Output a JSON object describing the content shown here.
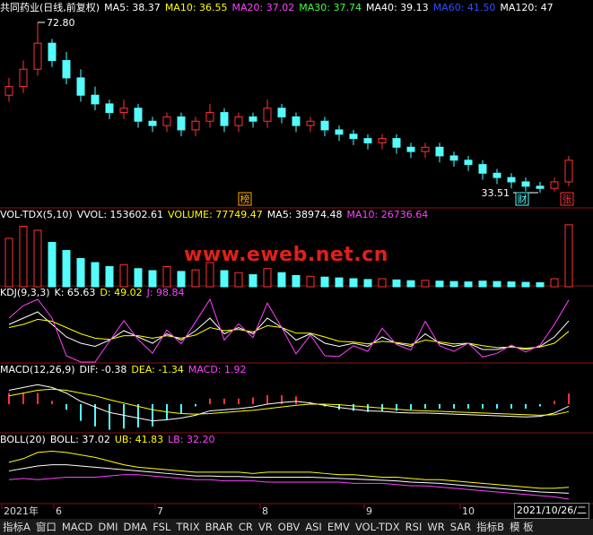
{
  "title": "共同药业(日线,前复权)",
  "ma_legend": [
    {
      "text": "MA5: 38.37",
      "color": "#ffffff"
    },
    {
      "text": "MA10: 36.55",
      "color": "#ffff00"
    },
    {
      "text": "MA20: 37.02",
      "color": "#ff40ff"
    },
    {
      "text": "MA30: 37.74",
      "color": "#40ff40"
    },
    {
      "text": "MA40: 39.13",
      "color": "#ffffff"
    },
    {
      "text": "MA60: 41.50",
      "color": "#3050ff"
    },
    {
      "text": "MA120: 47",
      "color": "#ffffff"
    }
  ],
  "price": {
    "type": "candlestick",
    "ylim": [
      33.51,
      72.8
    ],
    "up_color": "#ff3232",
    "down_color": "#54fcfc",
    "open": [
      56,
      58,
      62,
      68,
      64,
      60,
      56,
      54,
      52,
      53,
      50,
      49,
      51,
      48,
      50,
      52,
      49,
      51,
      50,
      53,
      51,
      49,
      50,
      48,
      47,
      46,
      45,
      46,
      44,
      43,
      44,
      42,
      41,
      40,
      38,
      37,
      36,
      35,
      34.5,
      36
    ],
    "high": [
      60,
      64,
      72.8,
      69,
      66,
      62,
      58,
      55,
      55,
      54,
      51,
      52,
      52,
      51,
      54,
      53,
      52,
      52,
      55,
      54,
      52,
      51,
      51,
      49,
      48,
      47,
      47,
      47,
      45,
      45,
      45,
      43,
      42,
      41,
      39,
      38,
      37,
      36,
      37,
      42
    ],
    "low": [
      54.5,
      56.5,
      60.5,
      62.5,
      58.5,
      54.5,
      52.5,
      50.5,
      50.5,
      48.5,
      47.5,
      47.5,
      46.5,
      46.5,
      48.5,
      47.5,
      47.5,
      48.5,
      48.5,
      49.5,
      47.5,
      47.5,
      46.5,
      45.5,
      44.5,
      43.5,
      43.5,
      42.5,
      41.5,
      41.5,
      40.5,
      39.5,
      38.5,
      36.5,
      35.5,
      34.5,
      33.8,
      33.51,
      33.8,
      35
    ],
    "close": [
      58,
      62,
      68,
      64,
      60,
      56,
      54,
      52,
      53,
      50,
      49,
      51,
      48,
      50,
      52,
      49,
      51,
      50,
      53,
      51,
      49,
      50,
      48,
      47,
      46,
      45,
      46,
      44,
      43,
      44,
      42,
      41,
      40,
      38,
      37,
      36,
      35,
      34.5,
      36,
      41
    ],
    "annotations": [
      "72.80",
      "33.51"
    ]
  },
  "signals": [
    "榜",
    "财",
    "张"
  ],
  "volume": {
    "header": [
      {
        "text": "VOL-TDX(5,10)",
        "color": "#ffffff"
      },
      {
        "text": "VVOL: 153602.61",
        "color": "#ffffff"
      },
      {
        "text": "VOLUME: 77749.47",
        "color": "#ffff00"
      },
      {
        "text": "MA5: 38974.48",
        "color": "#ffffff"
      },
      {
        "text": "MA10: 26736.64",
        "color": "#ff40ff"
      }
    ],
    "ylim": [
      0,
      160000
    ],
    "values": [
      120000,
      150000,
      140000,
      110000,
      90000,
      70000,
      60000,
      50000,
      55000,
      45000,
      40000,
      50000,
      38000,
      42000,
      60000,
      40000,
      35000,
      30000,
      45000,
      35000,
      28000,
      26000,
      24000,
      22000,
      20000,
      18000,
      20000,
      17000,
      15000,
      16000,
      14000,
      13000,
      12000,
      14000,
      13000,
      12000,
      11000,
      10000,
      20000,
      153602.61
    ]
  },
  "kdj": {
    "header": [
      {
        "text": "KDJ(9,3,3)",
        "color": "#ffffff"
      },
      {
        "text": "K: 65.63",
        "color": "#ffffff"
      },
      {
        "text": "D: 49.02",
        "color": "#ffff00"
      },
      {
        "text": "J: 98.84",
        "color": "#ff40ff"
      }
    ],
    "ylim": [
      0,
      100
    ],
    "series": [
      {
        "color": "#ffffff",
        "values": [
          60,
          70,
          80,
          60,
          40,
          30,
          25,
          35,
          50,
          40,
          30,
          45,
          35,
          50,
          70,
          45,
          55,
          45,
          70,
          55,
          35,
          45,
          30,
          25,
          30,
          25,
          40,
          30,
          25,
          45,
          30,
          25,
          30,
          20,
          20,
          25,
          20,
          25,
          40,
          65.63
        ]
      },
      {
        "color": "#ffff00",
        "values": [
          55,
          60,
          68,
          65,
          55,
          45,
          38,
          36,
          42,
          42,
          38,
          42,
          38,
          43,
          55,
          50,
          52,
          48,
          58,
          55,
          46,
          46,
          40,
          33,
          32,
          29,
          33,
          31,
          28,
          35,
          32,
          29,
          30,
          26,
          23,
          24,
          22,
          24,
          30,
          49.02
        ]
      },
      {
        "color": "#ff40ff",
        "values": [
          70,
          90,
          100,
          70,
          10,
          0,
          0,
          33,
          66,
          36,
          14,
          51,
          29,
          64,
          100,
          35,
          61,
          39,
          94,
          55,
          13,
          43,
          10,
          9,
          26,
          17,
          54,
          28,
          19,
          65,
          26,
          17,
          30,
          8,
          14,
          27,
          16,
          27,
          60,
          98.84
        ]
      }
    ]
  },
  "macd": {
    "header": [
      {
        "text": "MACD(12,26,9)",
        "color": "#ffffff"
      },
      {
        "text": "DIF: -0.38",
        "color": "#ffffff"
      },
      {
        "text": "DEA: -1.34",
        "color": "#ffff00"
      },
      {
        "text": "MACD: 1.92",
        "color": "#ff40ff"
      }
    ],
    "ylim": [
      -5,
      5
    ],
    "hist": [
      2,
      2,
      2,
      0.6,
      -1,
      -3,
      -4,
      -4.6,
      -4.4,
      -4.2,
      -4,
      -2.8,
      -1.6,
      -0.4,
      1,
      1,
      1,
      1.2,
      1.6,
      1.6,
      1.4,
      0.4,
      -0.4,
      -1,
      -1.2,
      -1.4,
      -1.2,
      -1.2,
      -1,
      -0.8,
      -0.8,
      -0.8,
      -0.8,
      -0.8,
      -0.8,
      -0.8,
      -0.8,
      -0.4,
      0.6,
      1.92
    ],
    "series": [
      {
        "color": "#ffffff",
        "values": [
          2.5,
          3,
          3.5,
          3,
          2,
          0.5,
          -0.5,
          -1.5,
          -2,
          -2.5,
          -3,
          -2.8,
          -2.5,
          -2,
          -1.2,
          -1,
          -0.8,
          -0.5,
          0,
          0.3,
          0.5,
          0.2,
          -0.2,
          -0.6,
          -0.9,
          -1.2,
          -1.3,
          -1.5,
          -1.6,
          -1.6,
          -1.7,
          -1.8,
          -1.9,
          -2,
          -2.1,
          -2.2,
          -2.3,
          -2.2,
          -1.6,
          -0.38
        ]
      },
      {
        "color": "#ffff00",
        "values": [
          1.5,
          2,
          2.5,
          2.7,
          2.5,
          2,
          1.5,
          0.8,
          0.2,
          -0.4,
          -1,
          -1.4,
          -1.7,
          -1.8,
          -1.7,
          -1.5,
          -1.3,
          -1.1,
          -0.8,
          -0.5,
          -0.2,
          0,
          0,
          -0.1,
          -0.3,
          -0.5,
          -0.7,
          -0.9,
          -1.1,
          -1.2,
          -1.3,
          -1.4,
          -1.5,
          -1.6,
          -1.7,
          -1.8,
          -1.9,
          -2,
          -1.9,
          -1.34
        ]
      }
    ]
  },
  "boll": {
    "header": [
      {
        "text": "BOLL(20)",
        "color": "#ffffff"
      },
      {
        "text": "BOLL: 37.02",
        "color": "#ffffff"
      },
      {
        "text": "UB: 41.83",
        "color": "#ffff00"
      },
      {
        "text": "LB: 32.20",
        "color": "#ff40ff"
      }
    ],
    "ylim": [
      30,
      75
    ],
    "series": [
      {
        "color": "#ffffff",
        "values": [
          55,
          57,
          59,
          60,
          60,
          59,
          58,
          57,
          56,
          55,
          54,
          53,
          52,
          51,
          51,
          50.5,
          50.5,
          50,
          50,
          50,
          50,
          50,
          49.5,
          49,
          48.5,
          48,
          47.5,
          47,
          46,
          45.5,
          45,
          44,
          43,
          42,
          41,
          40,
          39,
          38,
          37.5,
          37.02
        ]
      },
      {
        "color": "#ffff00",
        "values": [
          62,
          65,
          70,
          71,
          70,
          68,
          66,
          63,
          60,
          58,
          57,
          56,
          55,
          54,
          54,
          54,
          54,
          53,
          54,
          54,
          54,
          54,
          53,
          52,
          52,
          51,
          50,
          50,
          49,
          48,
          48,
          47,
          46,
          45,
          44,
          43,
          42,
          41,
          41,
          41.83
        ]
      },
      {
        "color": "#ff40ff",
        "values": [
          48,
          49,
          48,
          49,
          50,
          50,
          50,
          51,
          52,
          52,
          51,
          50,
          49,
          48,
          48,
          47,
          47,
          47,
          46,
          46,
          46,
          46,
          46,
          46,
          45,
          45,
          45,
          44,
          43,
          43,
          42,
          41,
          40,
          39,
          38,
          37,
          36,
          35,
          34,
          32.2
        ]
      }
    ]
  },
  "x_labels": [
    "2021年",
    "6",
    "7",
    "8",
    "9",
    "10"
  ],
  "date": "2021/10/26/二",
  "watermark": "www.eweb.net.cn",
  "toolbar": [
    "指标A",
    "窗口",
    "MACD",
    "DMI",
    "DMA",
    "FSL",
    "TRIX",
    "BRAR",
    "CR",
    "VR",
    "OBV",
    "ASI",
    "EMV",
    "VOL-TDX",
    "RSI",
    "WR",
    "SAR",
    "指标B",
    "模 板"
  ]
}
